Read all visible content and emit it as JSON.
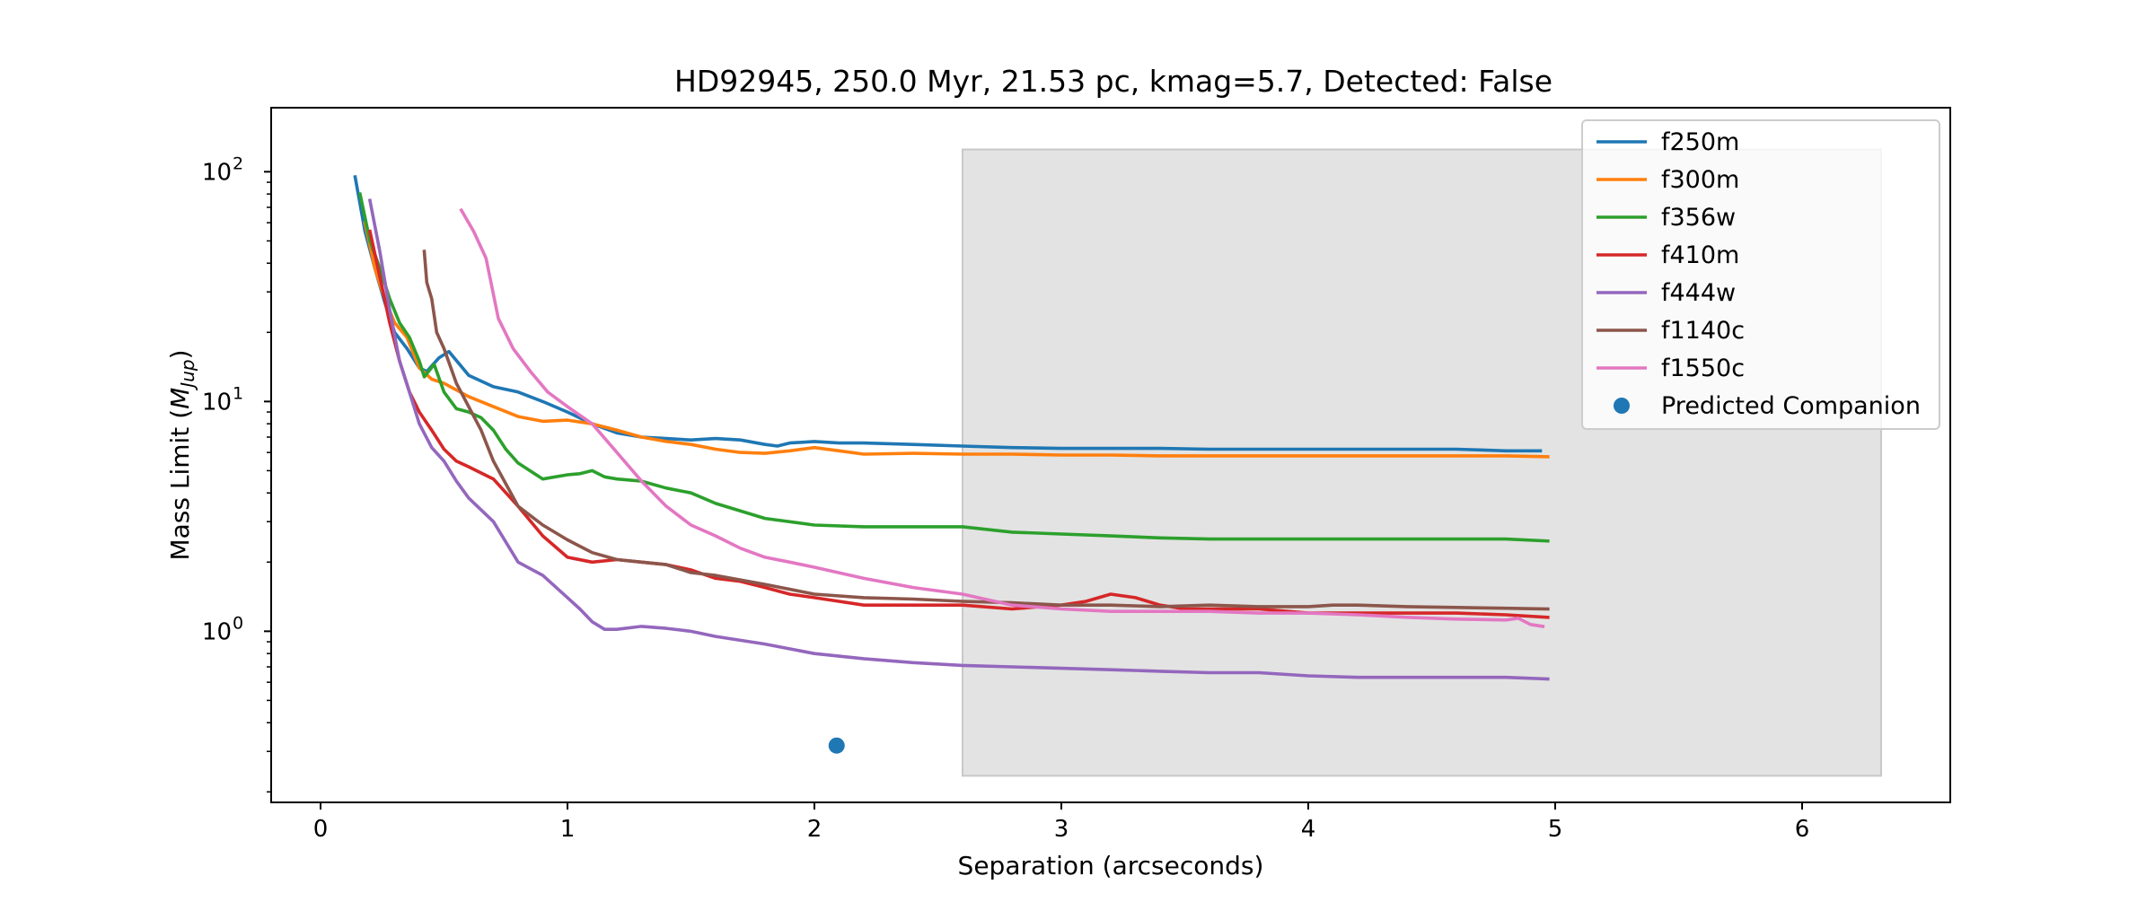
{
  "chart_data": {
    "type": "line",
    "title": "HD92945, 250.0 Myr, 21.53 pc, kmag=5.7, Detected: False",
    "xlabel": "Separation (arcseconds)",
    "ylabel": "Mass Limit (",
    "ylabel_math": "M",
    "ylabel_sub": "Jup",
    "ylabel_close": ")",
    "xlim": [
      -0.2,
      6.6
    ],
    "ylim": [
      0.18,
      190
    ],
    "yscale": "log",
    "grid": false,
    "legend_position": "top-right",
    "x_ticks": [
      {
        "value": 0,
        "label": "0"
      },
      {
        "value": 1,
        "label": "1"
      },
      {
        "value": 2,
        "label": "2"
      },
      {
        "value": 3,
        "label": "3"
      },
      {
        "value": 4,
        "label": "4"
      },
      {
        "value": 5,
        "label": "5"
      },
      {
        "value": 6,
        "label": "6"
      }
    ],
    "y_ticks": [
      {
        "value": 1,
        "base": "10",
        "exp": "0"
      },
      {
        "value": 10,
        "base": "10",
        "exp": "1"
      },
      {
        "value": 100,
        "base": "10",
        "exp": "2"
      }
    ],
    "shaded_region": {
      "x": [
        2.6,
        6.32
      ],
      "y": [
        0.235,
        125
      ],
      "color": "#e3e3e3"
    },
    "series": [
      {
        "name": "f250m",
        "color": "#1f77b4",
        "x": [
          0.14,
          0.18,
          0.22,
          0.26,
          0.3,
          0.35,
          0.4,
          0.43,
          0.48,
          0.52,
          0.6,
          0.7,
          0.8,
          0.9,
          1.0,
          1.1,
          1.2,
          1.3,
          1.4,
          1.5,
          1.6,
          1.7,
          1.8,
          1.85,
          1.9,
          2.0,
          2.1,
          2.2,
          2.4,
          2.6,
          2.8,
          3.0,
          3.2,
          3.4,
          3.6,
          3.8,
          4.0,
          4.2,
          4.4,
          4.6,
          4.8,
          4.94
        ],
        "y": [
          95,
          55,
          38,
          27,
          20,
          17,
          14,
          13.5,
          15.5,
          16.5,
          13,
          11.6,
          11,
          10,
          9,
          8,
          7.3,
          7.0,
          6.9,
          6.8,
          6.9,
          6.8,
          6.5,
          6.4,
          6.6,
          6.7,
          6.6,
          6.6,
          6.5,
          6.4,
          6.3,
          6.25,
          6.25,
          6.25,
          6.2,
          6.2,
          6.2,
          6.2,
          6.2,
          6.2,
          6.1,
          6.1
        ]
      },
      {
        "name": "f300m",
        "color": "#ff7f0e",
        "x": [
          0.18,
          0.22,
          0.26,
          0.3,
          0.35,
          0.4,
          0.45,
          0.5,
          0.6,
          0.7,
          0.8,
          0.9,
          1.0,
          1.1,
          1.2,
          1.3,
          1.4,
          1.5,
          1.6,
          1.7,
          1.8,
          1.9,
          2.0,
          2.1,
          2.2,
          2.4,
          2.6,
          2.8,
          3.0,
          3.2,
          3.4,
          3.6,
          3.8,
          4.0,
          4.2,
          4.4,
          4.6,
          4.8,
          4.97
        ],
        "y": [
          60,
          38,
          28,
          22,
          19,
          14,
          12.5,
          12,
          10.5,
          9.5,
          8.6,
          8.2,
          8.3,
          8.0,
          7.5,
          7.0,
          6.7,
          6.5,
          6.2,
          6.0,
          5.95,
          6.1,
          6.3,
          6.1,
          5.9,
          5.95,
          5.9,
          5.9,
          5.85,
          5.85,
          5.8,
          5.8,
          5.8,
          5.8,
          5.8,
          5.8,
          5.8,
          5.8,
          5.75
        ]
      },
      {
        "name": "f356w",
        "color": "#2ca02c",
        "x": [
          0.16,
          0.2,
          0.24,
          0.28,
          0.32,
          0.36,
          0.4,
          0.42,
          0.46,
          0.5,
          0.55,
          0.6,
          0.65,
          0.7,
          0.75,
          0.8,
          0.9,
          1.0,
          1.05,
          1.1,
          1.15,
          1.2,
          1.3,
          1.4,
          1.5,
          1.6,
          1.8,
          2.0,
          2.2,
          2.4,
          2.6,
          2.8,
          3.0,
          3.2,
          3.4,
          3.6,
          3.8,
          4.0,
          4.2,
          4.4,
          4.6,
          4.8,
          4.97
        ],
        "y": [
          80,
          50,
          38,
          28,
          22,
          19,
          15,
          12.8,
          14.5,
          11,
          9.3,
          9.0,
          8.5,
          7.5,
          6.2,
          5.4,
          4.6,
          4.8,
          4.85,
          5.0,
          4.7,
          4.6,
          4.5,
          4.2,
          4.0,
          3.6,
          3.1,
          2.9,
          2.85,
          2.85,
          2.85,
          2.7,
          2.65,
          2.6,
          2.55,
          2.52,
          2.52,
          2.52,
          2.52,
          2.52,
          2.52,
          2.52,
          2.47
        ]
      },
      {
        "name": "f410m",
        "color": "#d62728",
        "x": [
          0.2,
          0.24,
          0.28,
          0.32,
          0.36,
          0.4,
          0.45,
          0.5,
          0.55,
          0.6,
          0.7,
          0.8,
          0.9,
          1.0,
          1.1,
          1.2,
          1.3,
          1.4,
          1.5,
          1.6,
          1.7,
          1.8,
          1.9,
          2.0,
          2.2,
          2.4,
          2.6,
          2.8,
          3.0,
          3.1,
          3.2,
          3.3,
          3.4,
          3.5,
          3.6,
          3.8,
          4.0,
          4.2,
          4.4,
          4.6,
          4.8,
          4.97
        ],
        "y": [
          55,
          35,
          22,
          15,
          11,
          9,
          7.5,
          6.2,
          5.5,
          5.2,
          4.6,
          3.5,
          2.6,
          2.1,
          2.0,
          2.05,
          2.0,
          1.95,
          1.85,
          1.7,
          1.65,
          1.55,
          1.45,
          1.4,
          1.3,
          1.3,
          1.3,
          1.25,
          1.3,
          1.35,
          1.45,
          1.4,
          1.3,
          1.25,
          1.25,
          1.25,
          1.2,
          1.2,
          1.2,
          1.2,
          1.18,
          1.15
        ]
      },
      {
        "name": "f444w",
        "color": "#9467bd",
        "x": [
          0.2,
          0.24,
          0.28,
          0.32,
          0.36,
          0.4,
          0.45,
          0.5,
          0.55,
          0.6,
          0.7,
          0.8,
          0.9,
          1.0,
          1.05,
          1.1,
          1.15,
          1.2,
          1.3,
          1.4,
          1.5,
          1.6,
          1.8,
          2.0,
          2.2,
          2.4,
          2.6,
          2.8,
          3.0,
          3.2,
          3.4,
          3.6,
          3.8,
          4.0,
          4.2,
          4.4,
          4.6,
          4.8,
          4.97
        ],
        "y": [
          75,
          45,
          25,
          15,
          11,
          8,
          6.3,
          5.5,
          4.5,
          3.8,
          3.0,
          2.0,
          1.75,
          1.4,
          1.25,
          1.1,
          1.02,
          1.02,
          1.05,
          1.03,
          1.0,
          0.95,
          0.88,
          0.8,
          0.76,
          0.73,
          0.71,
          0.7,
          0.69,
          0.68,
          0.67,
          0.66,
          0.66,
          0.64,
          0.63,
          0.63,
          0.63,
          0.63,
          0.62
        ]
      },
      {
        "name": "f1140c",
        "color": "#8c564b",
        "x": [
          0.42,
          0.43,
          0.45,
          0.47,
          0.5,
          0.55,
          0.6,
          0.65,
          0.7,
          0.8,
          0.9,
          1.0,
          1.1,
          1.2,
          1.3,
          1.4,
          1.5,
          1.6,
          1.8,
          2.0,
          2.2,
          2.4,
          2.6,
          2.8,
          3.0,
          3.2,
          3.4,
          3.6,
          3.8,
          4.0,
          4.1,
          4.2,
          4.4,
          4.6,
          4.8,
          4.97
        ],
        "y": [
          45,
          33,
          28,
          20,
          17,
          12,
          9.5,
          7.5,
          5.5,
          3.5,
          2.9,
          2.5,
          2.2,
          2.05,
          2.0,
          1.95,
          1.8,
          1.75,
          1.6,
          1.45,
          1.4,
          1.38,
          1.35,
          1.33,
          1.3,
          1.3,
          1.28,
          1.3,
          1.28,
          1.28,
          1.3,
          1.3,
          1.28,
          1.27,
          1.26,
          1.25
        ]
      },
      {
        "name": "f1550c",
        "color": "#e377c2",
        "x": [
          0.57,
          0.62,
          0.67,
          0.72,
          0.78,
          0.85,
          0.92,
          1.0,
          1.1,
          1.2,
          1.3,
          1.4,
          1.5,
          1.6,
          1.7,
          1.8,
          1.9,
          2.0,
          2.2,
          2.4,
          2.6,
          2.8,
          3.0,
          3.2,
          3.4,
          3.6,
          3.8,
          4.0,
          4.2,
          4.4,
          4.6,
          4.8,
          4.85,
          4.9,
          4.95
        ],
        "y": [
          68,
          55,
          42,
          23,
          17,
          13.5,
          11,
          9.5,
          8.0,
          6.0,
          4.5,
          3.5,
          2.9,
          2.6,
          2.3,
          2.1,
          2.0,
          1.9,
          1.7,
          1.55,
          1.45,
          1.3,
          1.25,
          1.22,
          1.22,
          1.22,
          1.2,
          1.2,
          1.18,
          1.15,
          1.13,
          1.12,
          1.14,
          1.07,
          1.05
        ]
      }
    ],
    "scatter": {
      "name": "Predicted Companion",
      "color": "#1f77b4",
      "x": 2.09,
      "y": 0.318
    }
  }
}
